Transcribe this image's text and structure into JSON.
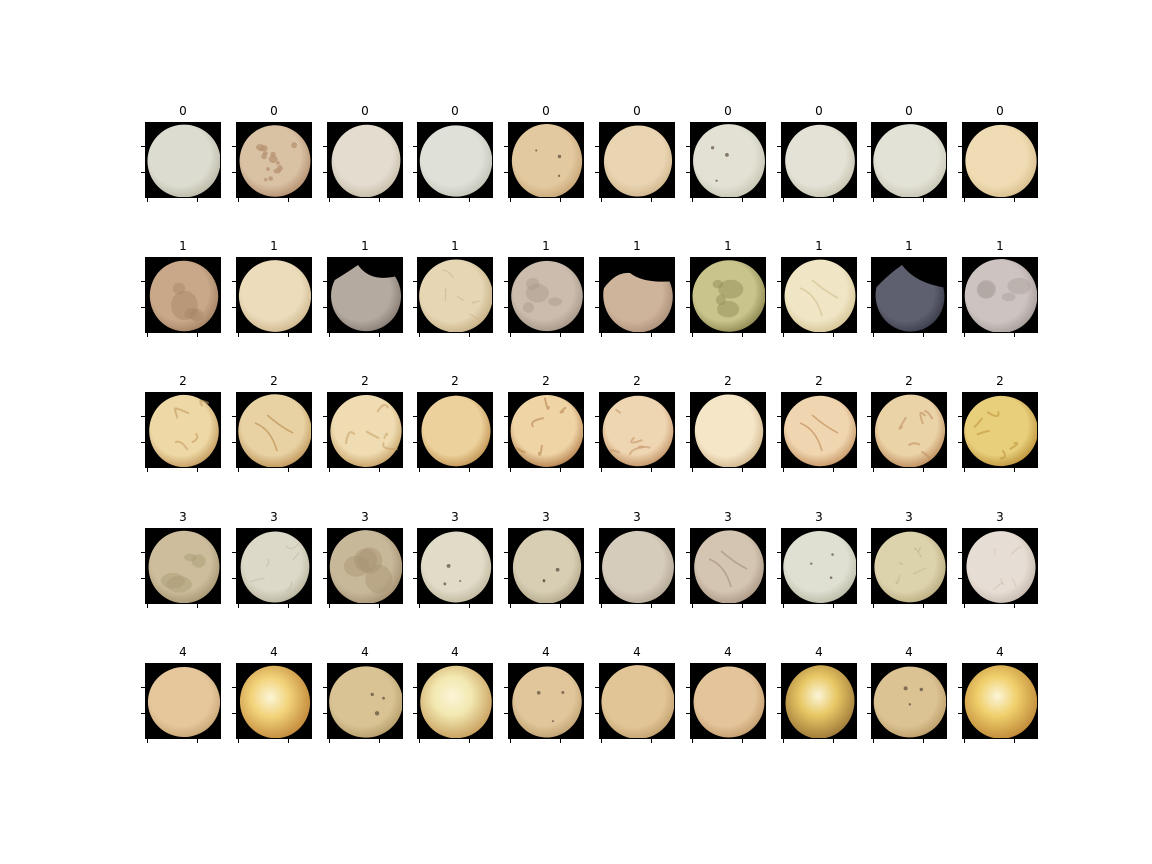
{
  "colors": {
    "background": "#ffffff",
    "axes_background": "#000000",
    "text": "#000000"
  },
  "grid": {
    "rows": 5,
    "columns": 10
  },
  "rows": [
    {
      "label": "0",
      "samples": [
        {
          "title": "0",
          "base": "#dcdcd0",
          "rim": "#bdb9a8",
          "mottle": "none"
        },
        {
          "title": "0",
          "base": "#d9c1a4",
          "rim": "#b69272",
          "mottle": "spots"
        },
        {
          "title": "0",
          "base": "#e3dccf",
          "rim": "#c7bda9",
          "mottle": "none"
        },
        {
          "title": "0",
          "base": "#dfe0d8",
          "rim": "#c4c5b8",
          "mottle": "none"
        },
        {
          "title": "0",
          "base": "#e3c9a0",
          "rim": "#c9a878",
          "mottle": "speck"
        },
        {
          "title": "0",
          "base": "#ead5b3",
          "rim": "#d2b88f",
          "mottle": "none"
        },
        {
          "title": "0",
          "base": "#e2e1d4",
          "rim": "#c8c6b4",
          "mottle": "speck"
        },
        {
          "title": "0",
          "base": "#e4e2d6",
          "rim": "#c9c5b2",
          "mottle": "none"
        },
        {
          "title": "0",
          "base": "#e3e2d6",
          "rim": "#c9c7b6",
          "mottle": "none"
        },
        {
          "title": "0",
          "base": "#f0dcb4",
          "rim": "#d8bf8f",
          "mottle": "none"
        }
      ]
    },
    {
      "label": "1",
      "samples": [
        {
          "title": "1",
          "base": "#c9a88a",
          "rim": "#a78466",
          "mottle": "blotch"
        },
        {
          "title": "1",
          "base": "#ecdcbc",
          "rim": "#cfb98f",
          "mottle": "none"
        },
        {
          "title": "1",
          "base": "#b4aaa0",
          "rim": "#8a7f76",
          "mottle": "broken"
        },
        {
          "title": "1",
          "base": "#e6d6b4",
          "rim": "#c7b187",
          "mottle": "streak"
        },
        {
          "title": "1",
          "base": "#cbbcae",
          "rim": "#a8988a",
          "mottle": "blotch"
        },
        {
          "title": "1",
          "base": "#cfb49c",
          "rim": "#ad917a",
          "mottle": "broken"
        },
        {
          "title": "1",
          "base": "#c9c48c",
          "rim": "#8f8a52",
          "mottle": "blotch"
        },
        {
          "title": "1",
          "base": "#f0e6c6",
          "rim": "#d6c697",
          "mottle": "crack"
        },
        {
          "title": "1",
          "base": "#5e6070",
          "rim": "#3c3e4c",
          "mottle": "broken"
        },
        {
          "title": "1",
          "base": "#cdc3c0",
          "rim": "#a89e9a",
          "mottle": "blotch"
        }
      ]
    },
    {
      "label": "2",
      "samples": [
        {
          "title": "2",
          "base": "#eed9a6",
          "rim": "#c59c62",
          "mottle": "wrinkle"
        },
        {
          "title": "2",
          "base": "#e8d2a4",
          "rim": "#c2995c",
          "mottle": "crack"
        },
        {
          "title": "2",
          "base": "#efdcb2",
          "rim": "#c9a46a",
          "mottle": "wrinkle"
        },
        {
          "title": "2",
          "base": "#ecd19c",
          "rim": "#c49756",
          "mottle": "none"
        },
        {
          "title": "2",
          "base": "#efd4a6",
          "rim": "#b88552",
          "mottle": "wrinkle"
        },
        {
          "title": "2",
          "base": "#efd6b2",
          "rim": "#c5976a",
          "mottle": "wrinkle"
        },
        {
          "title": "2",
          "base": "#f5e6c8",
          "rim": "#d2b88e",
          "mottle": "none"
        },
        {
          "title": "2",
          "base": "#f0d6b0",
          "rim": "#c99a6a",
          "mottle": "crack"
        },
        {
          "title": "2",
          "base": "#ebd3a8",
          "rim": "#c09060",
          "mottle": "wrinkle"
        },
        {
          "title": "2",
          "base": "#e8cf7c",
          "rim": "#c0963e",
          "mottle": "wrinkle"
        }
      ]
    },
    {
      "label": "3",
      "samples": [
        {
          "title": "3",
          "base": "#cdbd9c",
          "rim": "#a99874",
          "mottle": "blotch"
        },
        {
          "title": "3",
          "base": "#dcd9c8",
          "rim": "#bbb6a0",
          "mottle": "streak"
        },
        {
          "title": "3",
          "base": "#c8b89a",
          "rim": "#a69273",
          "mottle": "blotch"
        },
        {
          "title": "3",
          "base": "#e1dcc8",
          "rim": "#c2baa0",
          "mottle": "speck"
        },
        {
          "title": "3",
          "base": "#d7ceb4",
          "rim": "#b6aa8c",
          "mottle": "speck"
        },
        {
          "title": "3",
          "base": "#d6ccbc",
          "rim": "#b4a896",
          "mottle": "none"
        },
        {
          "title": "3",
          "base": "#d4c4b2",
          "rim": "#ad9a86",
          "mottle": "crack"
        },
        {
          "title": "3",
          "base": "#dfe0d2",
          "rim": "#bcbca8",
          "mottle": "speck"
        },
        {
          "title": "3",
          "base": "#dcd2ac",
          "rim": "#bcae82",
          "mottle": "streak"
        },
        {
          "title": "3",
          "base": "#e6ddd4",
          "rim": "#c8bcb0",
          "mottle": "streak"
        }
      ]
    },
    {
      "label": "4",
      "samples": [
        {
          "title": "4",
          "base": "#e6c79c",
          "rim": "#caa878",
          "mottle": "none"
        },
        {
          "title": "4",
          "base": "#f2d37a",
          "rim": "#c28a3c",
          "mottle": "glow"
        },
        {
          "title": "4",
          "base": "#d9c394",
          "rim": "#b79f6c",
          "mottle": "speck"
        },
        {
          "title": "4",
          "base": "#f2e8b0",
          "rim": "#c9a060",
          "mottle": "glow"
        },
        {
          "title": "4",
          "base": "#e0c69a",
          "rim": "#c2a474",
          "mottle": "speck"
        },
        {
          "title": "4",
          "base": "#e2c596",
          "rim": "#c4a270",
          "mottle": "none"
        },
        {
          "title": "4",
          "base": "#e4c49a",
          "rim": "#c59f70",
          "mottle": "none"
        },
        {
          "title": "4",
          "base": "#e8c865",
          "rim": "#a07a3a",
          "mottle": "glow"
        },
        {
          "title": "4",
          "base": "#dcc394",
          "rim": "#bd9f6a",
          "mottle": "speck"
        },
        {
          "title": "4",
          "base": "#f0d06c",
          "rim": "#c08a3a",
          "mottle": "glow"
        }
      ]
    }
  ]
}
